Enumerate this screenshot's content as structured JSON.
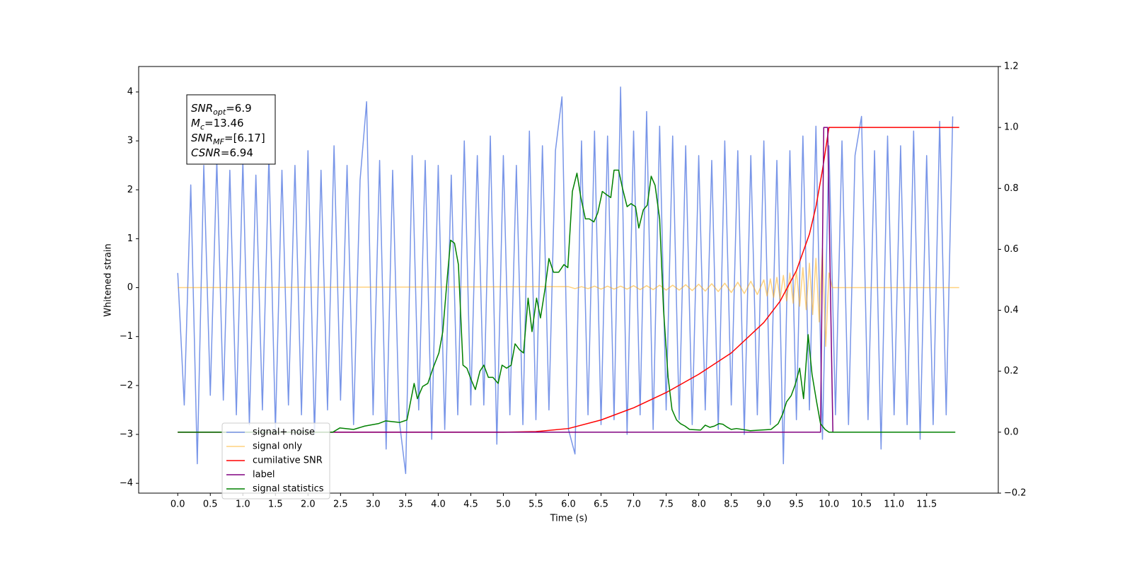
{
  "chart_data": {
    "type": "line",
    "xlabel": "Time (s)",
    "ylabel": "Whitened strain",
    "xlim": [
      -0.6,
      12.6
    ],
    "ylim": [
      -4.2,
      4.52
    ],
    "y2lim": [
      -0.2,
      1.2
    ],
    "xticks": [
      {
        "value": 0,
        "label": "0.0"
      },
      0.5,
      {
        "value": 1,
        "label": "1.0"
      },
      1.5,
      {
        "value": 2,
        "label": "2.0"
      },
      2.5,
      {
        "value": 3,
        "label": "3.0"
      },
      3.5,
      {
        "value": 4,
        "label": "4.0"
      },
      4.5,
      {
        "value": 5,
        "label": "5.0"
      },
      5.5,
      {
        "value": 6,
        "label": "6.0"
      },
      6.5,
      {
        "value": 7,
        "label": "7.0"
      },
      7.5,
      {
        "value": 8,
        "label": "8.0"
      },
      8.5,
      {
        "value": 9,
        "label": "9.0"
      },
      9.5,
      {
        "value": 10,
        "label": "10.0"
      },
      10.5,
      {
        "value": 11,
        "label": "11.0"
      },
      11.5
    ],
    "yticks": [
      {
        "value": -4,
        "label": "−4"
      },
      {
        "value": -3,
        "label": "−3"
      },
      {
        "value": -2,
        "label": "−2"
      },
      {
        "value": -1,
        "label": "−1"
      },
      0,
      1,
      2,
      3,
      4
    ],
    "y2ticks": [
      {
        "value": -0.2,
        "label": "−0.2"
      },
      {
        "value": 0,
        "label": "0.0"
      },
      0.2,
      0.4,
      0.6,
      0.8,
      {
        "value": 1,
        "label": "1.0"
      },
      1.2
    ],
    "legend": "lower left",
    "annotation": [
      {
        "symbol": "SNR",
        "subscript": "opt",
        "text": "=6.9"
      },
      {
        "symbol": "M",
        "subscript": "c",
        "text": "=13.46"
      },
      {
        "symbol": "SNR",
        "subscript": "MF",
        "text": "=[6.17]"
      },
      {
        "symbol": "CSNR",
        "text": "=6.94"
      }
    ],
    "series": [
      {
        "name": "signal+ noise",
        "color": "#7895e8",
        "x": [
          0,
          0.1,
          0.2,
          0.3,
          0.4,
          0.5,
          0.6,
          0.7,
          0.8,
          0.9,
          1,
          1.1,
          1.2,
          1.3,
          1.4,
          1.5,
          1.6,
          1.7,
          1.8,
          1.9,
          2,
          2.1,
          2.2,
          2.3,
          2.4,
          2.5,
          2.6,
          2.7,
          2.8,
          2.9,
          3,
          3.1,
          3.2,
          3.3,
          3.4,
          3.5,
          3.6,
          3.7,
          3.8,
          3.9,
          4,
          4.1,
          4.2,
          4.3,
          4.4,
          4.5,
          4.6,
          4.7,
          4.8,
          4.9,
          5,
          5.1,
          5.2,
          5.3,
          5.4,
          5.5,
          5.6,
          5.7,
          5.8,
          5.9,
          6,
          6.1,
          6.2,
          6.3,
          6.4,
          6.5,
          6.6,
          6.7,
          6.8,
          6.9,
          7,
          7.1,
          7.2,
          7.3,
          7.4,
          7.5,
          7.6,
          7.7,
          7.8,
          7.9,
          8,
          8.1,
          8.2,
          8.3,
          8.4,
          8.5,
          8.6,
          8.7,
          8.8,
          8.9,
          9,
          9.1,
          9.2,
          9.3,
          9.4,
          9.5,
          9.6,
          9.7,
          9.8,
          9.9,
          10,
          10.1,
          10.2,
          10.3,
          10.4,
          10.5,
          10.6,
          10.7,
          10.8,
          10.9,
          11,
          11.1,
          11.2,
          11.3,
          11.4,
          11.5,
          11.6,
          11.7,
          11.8,
          11.9
        ],
        "values": [
          0.3,
          -2.4,
          2.1,
          -3.6,
          2.5,
          -2.2,
          2.6,
          -2.3,
          2.4,
          -2.6,
          2.6,
          -2.8,
          2.3,
          -2.5,
          2.7,
          -2.9,
          2.4,
          -2.4,
          2.5,
          -2.6,
          2.8,
          -3.0,
          2.4,
          -2.5,
          2.9,
          -2.3,
          2.5,
          -2.8,
          2.2,
          3.8,
          -2.6,
          2.6,
          -3.3,
          2.4,
          -2.7,
          -3.8,
          2.7,
          -2.5,
          2.6,
          -3.1,
          2.5,
          -2.9,
          2.3,
          -2.6,
          3.0,
          -2.4,
          2.7,
          -2.4,
          3.1,
          -3.2,
          2.7,
          -2.6,
          2.5,
          -2.8,
          3.2,
          -2.7,
          2.9,
          -2.5,
          2.8,
          3.9,
          -2.9,
          -3.4,
          3.0,
          -2.6,
          3.2,
          -2.8,
          3.1,
          -2.7,
          4.1,
          -3.0,
          3.2,
          -2.6,
          3.6,
          -2.9,
          3.3,
          -2.5,
          3.1,
          -2.7,
          2.9,
          -2.8,
          2.7,
          -2.5,
          2.6,
          -2.9,
          3.0,
          -2.4,
          2.8,
          -3.0,
          2.7,
          -2.6,
          3.0,
          -2.8,
          2.6,
          -3.6,
          2.8,
          -2.7,
          3.1,
          -2.5,
          3.3,
          -3.1,
          2.9,
          -2.6,
          3.0,
          -2.8,
          2.7,
          3.5,
          -2.7,
          2.8,
          -3.3,
          3.1,
          -2.6,
          2.9,
          -2.8,
          3.2,
          -3.1,
          2.7,
          -2.8,
          3.4,
          -2.6,
          3.5
        ]
      },
      {
        "name": "signal only",
        "color": "#ffa500",
        "x": [
          0,
          6,
          6.1,
          6.2,
          6.3,
          6.4,
          6.5,
          6.6,
          6.7,
          6.8,
          6.9,
          7,
          7.1,
          7.2,
          7.3,
          7.4,
          7.5,
          7.6,
          7.7,
          7.8,
          7.9,
          8,
          8.1,
          8.2,
          8.3,
          8.4,
          8.5,
          8.6,
          8.7,
          8.8,
          8.9,
          9,
          9.05,
          9.1,
          9.15,
          9.2,
          9.25,
          9.3,
          9.35,
          9.4,
          9.45,
          9.5,
          9.55,
          9.6,
          9.65,
          9.7,
          9.75,
          9.8,
          9.85,
          9.9,
          9.95,
          10,
          10.05,
          12
        ],
        "values": [
          0,
          0.02,
          -0.02,
          0.02,
          -0.02,
          0.03,
          -0.03,
          0.03,
          -0.03,
          0.03,
          -0.03,
          0.04,
          -0.04,
          0.04,
          -0.04,
          0.05,
          -0.05,
          0.05,
          -0.05,
          0.06,
          -0.06,
          0.07,
          -0.07,
          0.08,
          -0.08,
          0.09,
          -0.1,
          0.11,
          -0.12,
          0.13,
          -0.14,
          0.16,
          -0.17,
          0.18,
          -0.2,
          0.21,
          -0.23,
          0.25,
          -0.27,
          0.3,
          -0.32,
          0.35,
          -0.38,
          0.41,
          -0.45,
          0.5,
          -0.55,
          0.6,
          -0.7,
          0.8,
          -1.2,
          0.3,
          0,
          0
        ]
      },
      {
        "name": "cumilative SNR",
        "color": "#ff0000",
        "axis": "y2",
        "x": [
          0,
          5,
          5.5,
          6,
          6.5,
          7,
          7.5,
          8,
          8.5,
          9,
          9.25,
          9.5,
          9.7,
          9.8,
          9.9,
          9.95,
          10,
          12
        ],
        "values": [
          0,
          0,
          0.002,
          0.012,
          0.04,
          0.08,
          0.13,
          0.19,
          0.26,
          0.36,
          0.43,
          0.53,
          0.65,
          0.74,
          0.86,
          0.93,
          1,
          1
        ]
      },
      {
        "name": "label",
        "color": "#800080",
        "axis": "y2",
        "x": [
          0,
          9.87,
          9.92,
          9.98,
          10.06
        ],
        "values": [
          0,
          0,
          1,
          1,
          0
        ]
      },
      {
        "name": "signal statistics",
        "color": "#008000",
        "axis": "y2",
        "x": [
          0,
          2.38,
          2.49,
          2.7,
          2.87,
          3.08,
          3.19,
          3.41,
          3.52,
          3.63,
          3.68,
          3.76,
          3.84,
          3.92,
          4.01,
          4.07,
          4.14,
          4.19,
          4.25,
          4.31,
          4.38,
          4.44,
          4.51,
          4.57,
          4.64,
          4.7,
          4.77,
          4.84,
          4.92,
          4.98,
          5.05,
          5.12,
          5.18,
          5.25,
          5.31,
          5.38,
          5.44,
          5.51,
          5.57,
          5.64,
          5.7,
          5.77,
          5.85,
          5.93,
          5.99,
          6.06,
          6.13,
          6.19,
          6.26,
          6.32,
          6.39,
          6.45,
          6.52,
          6.58,
          6.65,
          6.7,
          6.77,
          6.83,
          6.9,
          6.96,
          7.03,
          7.08,
          7.15,
          7.21,
          7.27,
          7.33,
          7.4,
          7.46,
          7.53,
          7.59,
          7.66,
          7.72,
          7.79,
          7.86,
          8.03,
          8.1,
          8.17,
          8.24,
          8.31,
          8.37,
          8.44,
          8.5,
          8.58,
          8.79,
          9.11,
          9.22,
          9.29,
          9.35,
          9.42,
          9.48,
          9.55,
          9.61,
          9.68,
          9.74,
          9.81,
          9.87,
          9.94,
          10,
          11.94
        ],
        "values": [
          0,
          0,
          0.014,
          0.009,
          0.02,
          0.028,
          0.037,
          0.032,
          0.04,
          0.16,
          0.11,
          0.15,
          0.16,
          0.21,
          0.26,
          0.33,
          0.51,
          0.63,
          0.62,
          0.55,
          0.22,
          0.21,
          0.17,
          0.14,
          0.2,
          0.22,
          0.18,
          0.18,
          0.16,
          0.22,
          0.21,
          0.22,
          0.29,
          0.27,
          0.26,
          0.44,
          0.33,
          0.44,
          0.375,
          0.47,
          0.57,
          0.525,
          0.525,
          0.55,
          0.54,
          0.79,
          0.85,
          0.77,
          0.7,
          0.7,
          0.69,
          0.72,
          0.79,
          0.78,
          0.77,
          0.86,
          0.86,
          0.8,
          0.74,
          0.75,
          0.74,
          0.67,
          0.73,
          0.745,
          0.84,
          0.81,
          0.7,
          0.4,
          0.18,
          0.074,
          0.04,
          0.028,
          0.02,
          0.009,
          0.007,
          0.023,
          0.016,
          0.02,
          0.028,
          0.026,
          0.016,
          0.009,
          0.012,
          0.005,
          0.009,
          0.028,
          0.06,
          0.1,
          0.12,
          0.155,
          0.21,
          0.11,
          0.32,
          0.19,
          0.1,
          0.028,
          0.009,
          0,
          0
        ]
      }
    ]
  }
}
